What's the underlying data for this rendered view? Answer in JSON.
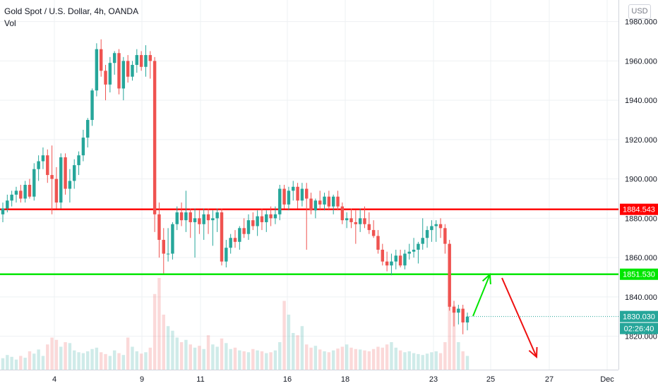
{
  "legend": {
    "symbol_title": "Gold Spot / U.S. Dollar, 4h, OANDA",
    "volume_label": "Vol"
  },
  "currency_button": "USD",
  "colors": {
    "up": "#26a69a",
    "down": "#ef5350",
    "resistance_line": "#ff0000",
    "support_line": "#00e600",
    "arrow_up": "#00e600",
    "arrow_down": "#ee1111",
    "grid": "#eef0f3"
  },
  "chart_data": {
    "type": "candlestick",
    "title": "Gold Spot / U.S. Dollar, 4h, OANDA",
    "x_tick_labels": [
      "4",
      "9",
      "11",
      "16",
      "18",
      "23",
      "25",
      "27",
      "Dec"
    ],
    "y_tick_labels": [
      "1820.000",
      "1840.000",
      "1860.000",
      "1880.000",
      "1900.000",
      "1920.000",
      "1940.000",
      "1960.000",
      "1980.000"
    ],
    "y_range": [
      1803,
      1991
    ],
    "grid": true,
    "horizontal_levels": [
      {
        "label": "1884.543",
        "value": 1884.543,
        "color": "#ff0000"
      },
      {
        "label": "1851.530",
        "value": 1851.53,
        "color": "#00e600"
      }
    ],
    "last_price": {
      "label": "1830.030",
      "value": 1830.03
    },
    "countdown": "02:26:40",
    "candles": [
      [
        1882,
        1888,
        1878,
        1885
      ],
      [
        1885,
        1892,
        1883,
        1889
      ],
      [
        1889,
        1894,
        1886,
        1892
      ],
      [
        1892,
        1896,
        1888,
        1894
      ],
      [
        1894,
        1897,
        1888,
        1890
      ],
      [
        1890,
        1899,
        1888,
        1897
      ],
      [
        1897,
        1900,
        1890,
        1891
      ],
      [
        1891,
        1908,
        1889,
        1905
      ],
      [
        1905,
        1912,
        1899,
        1909
      ],
      [
        1909,
        1916,
        1905,
        1912
      ],
      [
        1912,
        1915,
        1898,
        1902
      ],
      [
        1902,
        1917,
        1882,
        1900
      ],
      [
        1900,
        1906,
        1885,
        1888
      ],
      [
        1888,
        1913,
        1885,
        1911
      ],
      [
        1911,
        1913,
        1892,
        1895
      ],
      [
        1895,
        1905,
        1888,
        1899
      ],
      [
        1899,
        1910,
        1895,
        1907
      ],
      [
        1907,
        1914,
        1902,
        1912
      ],
      [
        1912,
        1925,
        1909,
        1921
      ],
      [
        1921,
        1931,
        1916,
        1930
      ],
      [
        1930,
        1946,
        1927,
        1945
      ],
      [
        1945,
        1969,
        1942,
        1966
      ],
      [
        1966,
        1971,
        1952,
        1955
      ],
      [
        1955,
        1958,
        1940,
        1948
      ],
      [
        1948,
        1962,
        1944,
        1959
      ],
      [
        1959,
        1965,
        1953,
        1964
      ],
      [
        1964,
        1966,
        1943,
        1946
      ],
      [
        1946,
        1962,
        1940,
        1960
      ],
      [
        1960,
        1963,
        1949,
        1952
      ],
      [
        1952,
        1960,
        1950,
        1958
      ],
      [
        1958,
        1966,
        1954,
        1963
      ],
      [
        1963,
        1965,
        1955,
        1957
      ],
      [
        1957,
        1968,
        1952,
        1963
      ],
      [
        1963,
        1965,
        1951,
        1960
      ],
      [
        1960,
        1962,
        1873,
        1882
      ],
      [
        1882,
        1888,
        1860,
        1869
      ],
      [
        1869,
        1875,
        1852,
        1862
      ],
      [
        1862,
        1875,
        1858,
        1862
      ],
      [
        1862,
        1878,
        1859,
        1877
      ],
      [
        1877,
        1886,
        1874,
        1883
      ],
      [
        1883,
        1888,
        1876,
        1879
      ],
      [
        1879,
        1894,
        1873,
        1883
      ],
      [
        1883,
        1885,
        1870,
        1878
      ],
      [
        1878,
        1885,
        1860,
        1880
      ],
      [
        1880,
        1884,
        1872,
        1877
      ],
      [
        1877,
        1885,
        1869,
        1882
      ],
      [
        1882,
        1885,
        1872,
        1879
      ],
      [
        1879,
        1884,
        1866,
        1880
      ],
      [
        1880,
        1885,
        1873,
        1883
      ],
      [
        1883,
        1885,
        1856,
        1858
      ],
      [
        1858,
        1869,
        1855,
        1865
      ],
      [
        1865,
        1872,
        1862,
        1870
      ],
      [
        1870,
        1874,
        1865,
        1868
      ],
      [
        1868,
        1876,
        1864,
        1875
      ],
      [
        1875,
        1880,
        1870,
        1872
      ],
      [
        1872,
        1882,
        1869,
        1879
      ],
      [
        1879,
        1883,
        1874,
        1876
      ],
      [
        1876,
        1884,
        1871,
        1881
      ],
      [
        1881,
        1885,
        1874,
        1878
      ],
      [
        1878,
        1884,
        1873,
        1882
      ],
      [
        1882,
        1886,
        1876,
        1880
      ],
      [
        1880,
        1886,
        1877,
        1882
      ],
      [
        1882,
        1897,
        1879,
        1895
      ],
      [
        1895,
        1897,
        1885,
        1887
      ],
      [
        1887,
        1896,
        1884,
        1894
      ],
      [
        1894,
        1899,
        1889,
        1896
      ],
      [
        1896,
        1898,
        1885,
        1889
      ],
      [
        1889,
        1898,
        1886,
        1895
      ],
      [
        1895,
        1898,
        1864,
        1890
      ],
      [
        1890,
        1893,
        1882,
        1884
      ],
      [
        1884,
        1890,
        1880,
        1889
      ],
      [
        1889,
        1894,
        1884,
        1887
      ],
      [
        1887,
        1893,
        1884,
        1891
      ],
      [
        1891,
        1894,
        1884,
        1886
      ],
      [
        1886,
        1892,
        1882,
        1891
      ],
      [
        1891,
        1894,
        1884,
        1886
      ],
      [
        1886,
        1888,
        1877,
        1879
      ],
      [
        1879,
        1883,
        1875,
        1880
      ],
      [
        1880,
        1885,
        1875,
        1878
      ],
      [
        1878,
        1884,
        1867,
        1877
      ],
      [
        1877,
        1885,
        1873,
        1880
      ],
      [
        1880,
        1886,
        1875,
        1877
      ],
      [
        1877,
        1883,
        1872,
        1874
      ],
      [
        1874,
        1879,
        1870,
        1871
      ],
      [
        1871,
        1874,
        1862,
        1864
      ],
      [
        1864,
        1867,
        1856,
        1858
      ],
      [
        1858,
        1863,
        1853,
        1856
      ],
      [
        1856,
        1862,
        1851,
        1858
      ],
      [
        1858,
        1864,
        1854,
        1861
      ],
      [
        1861,
        1864,
        1855,
        1856
      ],
      [
        1856,
        1864,
        1854,
        1862
      ],
      [
        1862,
        1867,
        1859,
        1863
      ],
      [
        1863,
        1870,
        1860,
        1864
      ],
      [
        1864,
        1868,
        1857,
        1867
      ],
      [
        1867,
        1880,
        1864,
        1870
      ],
      [
        1870,
        1876,
        1865,
        1874
      ],
      [
        1874,
        1879,
        1868,
        1876
      ],
      [
        1876,
        1879,
        1868,
        1877
      ],
      [
        1877,
        1880,
        1870,
        1875
      ],
      [
        1875,
        1877,
        1862,
        1867
      ],
      [
        1867,
        1869,
        1833,
        1835
      ],
      [
        1835,
        1838,
        1825,
        1832
      ],
      [
        1832,
        1836,
        1826,
        1834
      ],
      [
        1834,
        1836,
        1821,
        1827
      ],
      [
        1827,
        1832,
        1823,
        1830
      ]
    ],
    "volumes": [
      25,
      32,
      28,
      22,
      30,
      26,
      40,
      35,
      44,
      30,
      55,
      70,
      65,
      50,
      60,
      58,
      42,
      38,
      36,
      40,
      45,
      48,
      38,
      34,
      30,
      42,
      36,
      32,
      70,
      50,
      40,
      35,
      38,
      48,
      165,
      200,
      120,
      95,
      85,
      70,
      60,
      65,
      55,
      48,
      52,
      45,
      75,
      55,
      50,
      68,
      58,
      45,
      48,
      42,
      40,
      38,
      45,
      42,
      40,
      36,
      38,
      42,
      60,
      150,
      120,
      80,
      75,
      95,
      55,
      48,
      52,
      44,
      40,
      38,
      42,
      46,
      50,
      55,
      48,
      45,
      44,
      42,
      40,
      45,
      50,
      48,
      55,
      60,
      48,
      42,
      38,
      40,
      36,
      34,
      32,
      35,
      38,
      40,
      36,
      60,
      170,
      140,
      60,
      40,
      30
    ]
  }
}
